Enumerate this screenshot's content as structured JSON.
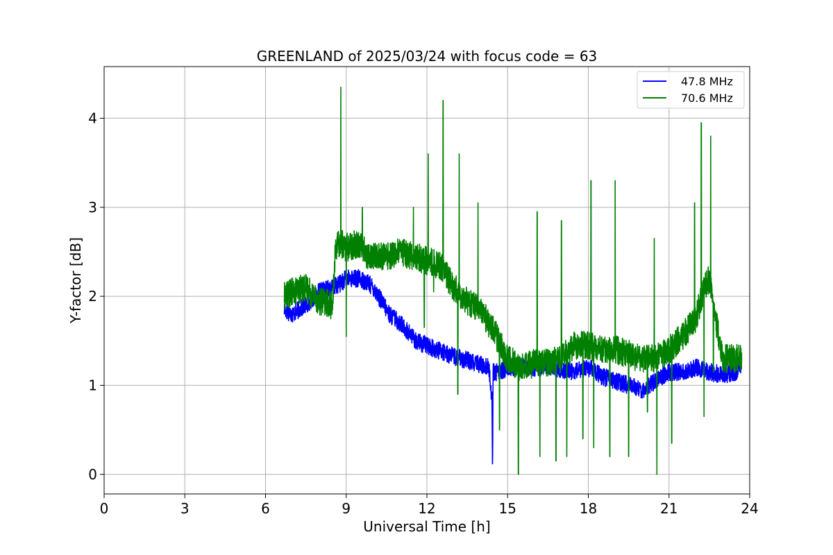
{
  "chart_data": {
    "type": "line",
    "title": "GREENLAND of 2025/03/24 with focus code = 63",
    "xlabel": "Universal Time [h]",
    "ylabel": "Y-factor [dB]",
    "xlim": [
      0,
      24
    ],
    "ylim": [
      -0.22,
      4.58
    ],
    "xticks": [
      0,
      3,
      6,
      9,
      12,
      15,
      18,
      21,
      24
    ],
    "yticks": [
      0,
      1,
      2,
      3,
      4
    ],
    "grid": true,
    "legend_position": "top-right",
    "series": [
      {
        "name": "47.8 MHz",
        "color": "#0000ff",
        "x": [
          6.7,
          7.0,
          7.5,
          8.0,
          8.5,
          8.8,
          9.0,
          9.5,
          9.8,
          10.0,
          10.3,
          10.6,
          11.0,
          11.3,
          11.6,
          12.0,
          12.3,
          12.6,
          13.0,
          13.3,
          13.6,
          14.0,
          14.3,
          14.42,
          14.44,
          14.46,
          14.7,
          15.0,
          15.5,
          16.0,
          16.5,
          17.0,
          17.5,
          18.0,
          18.5,
          19.0,
          19.5,
          20.0,
          20.5,
          21.0,
          21.5,
          22.0,
          22.5,
          23.0,
          23.5,
          23.7
        ],
        "y": [
          1.85,
          1.8,
          1.9,
          2.05,
          2.1,
          2.15,
          2.2,
          2.2,
          2.15,
          2.1,
          1.95,
          1.8,
          1.7,
          1.6,
          1.5,
          1.45,
          1.4,
          1.38,
          1.32,
          1.3,
          1.27,
          1.23,
          1.2,
          0.85,
          0.0,
          1.15,
          1.15,
          1.2,
          1.22,
          1.2,
          1.22,
          1.18,
          1.15,
          1.2,
          1.1,
          1.05,
          1.0,
          0.95,
          1.05,
          1.15,
          1.15,
          1.2,
          1.15,
          1.12,
          1.15,
          1.25
        ],
        "noise": 0.1
      },
      {
        "name": "70.6 MHz",
        "color": "#008000",
        "x": [
          6.7,
          7.0,
          7.5,
          8.0,
          8.5,
          8.6,
          8.8,
          9.0,
          9.5,
          9.8,
          10.0,
          10.5,
          11.0,
          11.5,
          12.0,
          12.5,
          12.8,
          13.0,
          13.5,
          14.0,
          14.5,
          15.0,
          15.5,
          16.0,
          16.5,
          17.0,
          17.5,
          18.0,
          18.5,
          19.0,
          19.5,
          20.0,
          20.5,
          21.0,
          21.5,
          22.0,
          22.3,
          22.5,
          22.7,
          23.0,
          23.5,
          23.7
        ],
        "y": [
          2.0,
          2.05,
          2.1,
          1.95,
          1.9,
          2.55,
          2.6,
          2.55,
          2.6,
          2.45,
          2.45,
          2.45,
          2.5,
          2.45,
          2.4,
          2.35,
          2.2,
          2.1,
          1.95,
          1.85,
          1.6,
          1.3,
          1.2,
          1.25,
          1.25,
          1.3,
          1.45,
          1.45,
          1.4,
          1.4,
          1.35,
          1.3,
          1.3,
          1.4,
          1.55,
          1.75,
          2.1,
          2.2,
          1.8,
          1.3,
          1.3,
          1.3
        ],
        "noise": 0.16
      }
    ],
    "spikes": {
      "70.6 MHz": [
        [
          8.8,
          4.35
        ],
        [
          9.0,
          1.55
        ],
        [
          9.6,
          3.0
        ],
        [
          11.5,
          3.0
        ],
        [
          11.9,
          1.65
        ],
        [
          12.05,
          3.6
        ],
        [
          12.25,
          2.05
        ],
        [
          12.6,
          4.2
        ],
        [
          13.15,
          0.9
        ],
        [
          13.2,
          3.6
        ],
        [
          13.9,
          3.05
        ],
        [
          14.7,
          0.5
        ],
        [
          15.4,
          0.0
        ],
        [
          16.1,
          2.95
        ],
        [
          16.2,
          0.2
        ],
        [
          16.8,
          0.15
        ],
        [
          17.0,
          2.85
        ],
        [
          17.2,
          0.2
        ],
        [
          17.8,
          0.4
        ],
        [
          18.1,
          3.3
        ],
        [
          18.2,
          0.3
        ],
        [
          18.8,
          0.2
        ],
        [
          19.0,
          3.3
        ],
        [
          19.5,
          0.2
        ],
        [
          20.2,
          0.7
        ],
        [
          20.45,
          2.65
        ],
        [
          20.55,
          0.0
        ],
        [
          21.1,
          0.35
        ],
        [
          21.95,
          3.05
        ],
        [
          22.2,
          3.95
        ],
        [
          22.3,
          0.65
        ],
        [
          22.55,
          3.8
        ],
        [
          22.65,
          1.15
        ]
      ]
    }
  },
  "legend": {
    "items": [
      {
        "label": "47.8 MHz",
        "color": "#0000ff"
      },
      {
        "label": "70.6 MHz",
        "color": "#008000"
      }
    ]
  }
}
